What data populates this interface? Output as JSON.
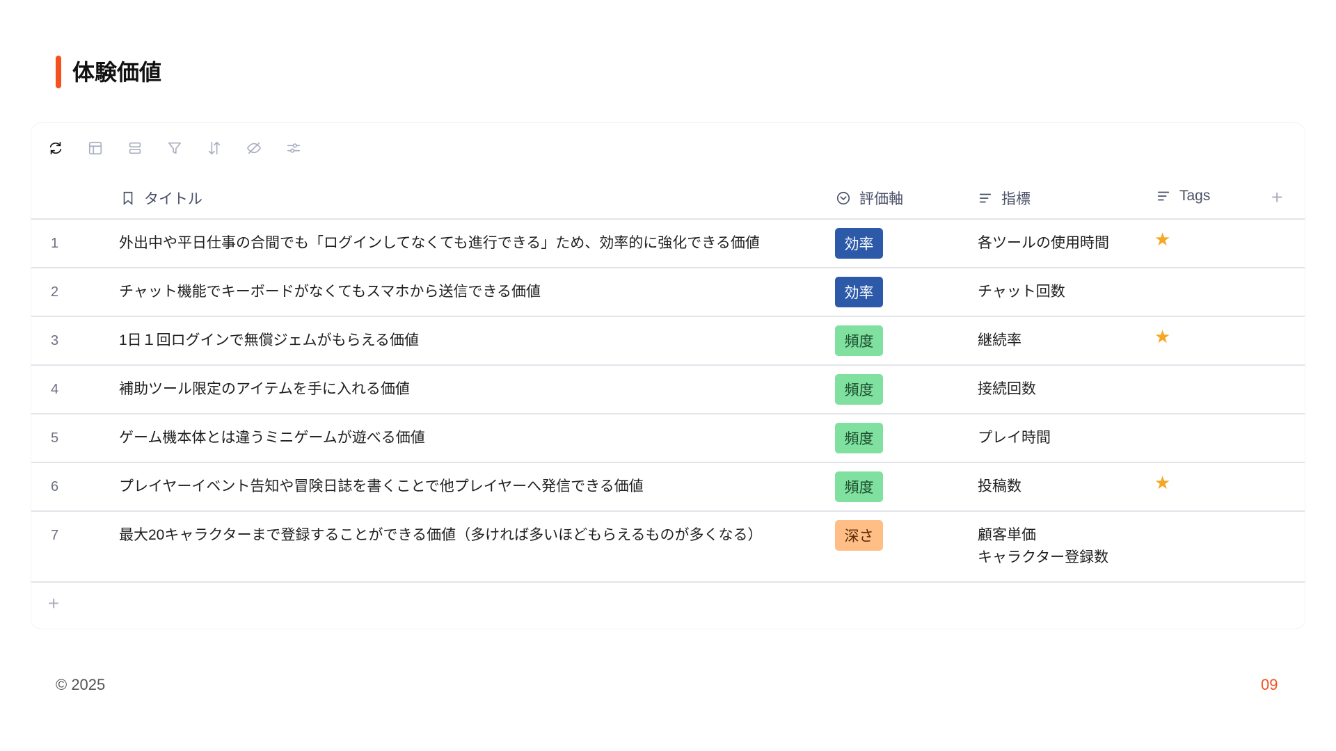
{
  "header": {
    "title": "体験価値",
    "accent_color": "#f4511e"
  },
  "toolbar": {
    "icons": [
      "refresh-icon",
      "layout-icon",
      "group-icon",
      "filter-icon",
      "sort-icon",
      "hide-icon",
      "settings-icon"
    ]
  },
  "table": {
    "columns": {
      "title": "タイトル",
      "axis": "評価軸",
      "metric": "指標",
      "tags": "Tags"
    },
    "add_column": "+",
    "add_row": "+",
    "rows": [
      {
        "num": "1",
        "title": "外出中や平日仕事の合間でも「ログインしてなくても進行できる」ため、効率的に強化できる価値",
        "axis": "効率",
        "metric": "各ツールの使用時間",
        "starred": true
      },
      {
        "num": "2",
        "title": "チャット機能でキーボードがなくてもスマホから送信できる価値",
        "axis": "効率",
        "metric": "チャット回数",
        "starred": false
      },
      {
        "num": "3",
        "title": "1日１回ログインで無償ジェムがもらえる価値",
        "axis": "頻度",
        "metric": "継続率",
        "starred": true
      },
      {
        "num": "4",
        "title": "補助ツール限定のアイテムを手に入れる価値",
        "axis": "頻度",
        "metric": "接続回数",
        "starred": false
      },
      {
        "num": "5",
        "title": "ゲーム機本体とは違うミニゲームが遊べる価値",
        "axis": "頻度",
        "metric": "プレイ時間",
        "starred": false
      },
      {
        "num": "6",
        "title": "プレイヤーイベント告知や冒険日誌を書くことで他プレイヤーへ発信できる価値",
        "axis": "頻度",
        "metric": "投稿数",
        "starred": true
      },
      {
        "num": "7",
        "title": "最大20キャラクターまで登録することができる価値（多ければ多いほどもらえるものが多くなる）",
        "axis": "深さ",
        "metric": "顧客単価\nキャラクター登録数",
        "starred": false
      }
    ],
    "axis_colors": {
      "効率": {
        "bg": "#2d5aa8",
        "fg": "#ffffff"
      },
      "頻度": {
        "bg": "#7fe0a0",
        "fg": "#1d4d2c"
      },
      "深さ": {
        "bg": "#ffbe85",
        "fg": "#5a2a0a"
      }
    },
    "star_icon": "★"
  },
  "footer": {
    "copyright": "© 2025",
    "page": "09"
  }
}
